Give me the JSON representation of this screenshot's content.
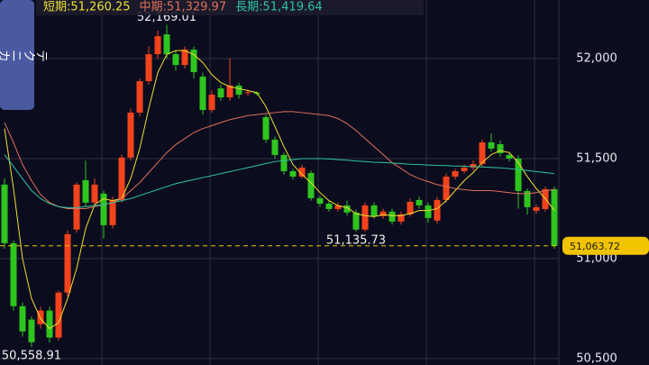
{
  "chart_data": {
    "type": "candlestick",
    "button": "テクニカル",
    "up_color": "#f2431c",
    "down_color": "#2ec51e",
    "grid_color": "#2e2e40",
    "ylim": [
      50468,
      52293
    ],
    "yticks": [
      {
        "value": 52000,
        "label": "52,000"
      },
      {
        "value": 51500,
        "label": "51,500"
      },
      {
        "value": 51000,
        "label": "51,000"
      },
      {
        "value": 50500,
        "label": "50,500"
      }
    ],
    "candles": {
      "open": [
        51370,
        51077,
        50762,
        50695,
        50672,
        50740,
        50605,
        50830,
        51145,
        51392,
        51280,
        51325,
        51167,
        51293,
        51505,
        51730,
        51887,
        52022,
        52121,
        52022,
        51968,
        52045,
        51910,
        51743,
        51851,
        51806,
        51865,
        51829,
        51829,
        51707,
        51595,
        51518,
        51437,
        51410,
        51428,
        51302,
        51275,
        51248,
        51266,
        51230,
        51145,
        51266,
        51212,
        51235,
        51185,
        51221,
        51293,
        51266,
        51190,
        51293,
        51410,
        51437,
        51455,
        51473,
        51581,
        51572,
        51518,
        51500,
        51338,
        51239,
        51248,
        51347
      ],
      "high": [
        51400,
        51090,
        50780,
        50710,
        50760,
        50760,
        50840,
        51140,
        51380,
        51490,
        51400,
        51340,
        51310,
        51520,
        51750,
        51900,
        52060,
        52140,
        52169.01,
        52040,
        52060,
        52060,
        51930,
        51840,
        51870,
        52000,
        51880,
        51845,
        51835,
        51720,
        51610,
        51530,
        51450,
        51470,
        51440,
        51315,
        51290,
        51280,
        51290,
        51245,
        51280,
        51280,
        51250,
        51250,
        51235,
        51300,
        51310,
        51280,
        51310,
        51425,
        51450,
        51470,
        51490,
        51595,
        51626,
        51590,
        51530,
        51515,
        51350,
        51270,
        51360,
        51360
      ],
      "low": [
        51050,
        50740,
        50610,
        50558.91,
        50650,
        50580,
        50590,
        50810,
        51130,
        51260,
        51260,
        51100,
        51150,
        51280,
        51490,
        51710,
        51870,
        52000,
        52000,
        51940,
        51950,
        51900,
        51720,
        51730,
        51790,
        51790,
        51800,
        51815,
        51815,
        51580,
        51500,
        51420,
        51395,
        51400,
        51290,
        51260,
        51235,
        51235,
        51215,
        51135.73,
        51135,
        51200,
        51200,
        51170,
        51170,
        51210,
        51250,
        51180,
        51175,
        51280,
        51395,
        51425,
        51440,
        51460,
        51535,
        51510,
        51485,
        51250,
        51220,
        51225,
        51235,
        51050
      ],
      "close": [
        51077,
        50762,
        50636,
        50582,
        50740,
        50605,
        50830,
        51122,
        51370,
        51280,
        51370,
        51167,
        51293,
        51505,
        51730,
        51887,
        52022,
        52112,
        52022,
        51968,
        52045,
        51932,
        51743,
        51820,
        51806,
        51865,
        51820,
        51832,
        51824,
        51595,
        51518,
        51437,
        51410,
        51455,
        51302,
        51275,
        51248,
        51266,
        51230,
        51145,
        51266,
        51212,
        51235,
        51185,
        51221,
        51284,
        51266,
        51203,
        51293,
        51410,
        51437,
        51455,
        51473,
        51581,
        51550,
        51527,
        51500,
        51338,
        51257,
        51257,
        51347,
        51063.72
      ]
    },
    "series": [
      {
        "name": "短期",
        "legend_text": "短期:51,260.25",
        "color": "#f0e030",
        "values": [
          51650,
          51350,
          51000,
          50800,
          50700,
          50650,
          50680,
          50800,
          50950,
          51150,
          51270,
          51300,
          51290,
          51300,
          51400,
          51550,
          51750,
          51930,
          52020,
          52040,
          52040,
          52020,
          51980,
          51920,
          51880,
          51860,
          51850,
          51840,
          51830,
          51760,
          51660,
          51560,
          51470,
          51420,
          51380,
          51330,
          51290,
          51265,
          51255,
          51225,
          51215,
          51210,
          51220,
          51215,
          51215,
          51225,
          51240,
          51240,
          51250,
          51290,
          51340,
          51390,
          51430,
          51480,
          51520,
          51540,
          51530,
          51480,
          51410,
          51350,
          51300,
          51240
        ]
      },
      {
        "name": "中期",
        "legend_text": "中期:51,329.97",
        "color": "#e0705a",
        "values": [
          51680,
          51580,
          51470,
          51390,
          51320,
          51280,
          51260,
          51250,
          51250,
          51250,
          51260,
          51270,
          51280,
          51300,
          51340,
          51380,
          51430,
          51480,
          51530,
          51570,
          51600,
          51630,
          51650,
          51665,
          51680,
          51695,
          51705,
          51715,
          51720,
          51725,
          51730,
          51735,
          51735,
          51730,
          51725,
          51720,
          51715,
          51700,
          51675,
          51640,
          51600,
          51560,
          51520,
          51480,
          51450,
          51420,
          51400,
          51385,
          51370,
          51360,
          51350,
          51345,
          51340,
          51340,
          51340,
          51335,
          51330,
          51325,
          51325,
          51330,
          51340,
          51345
        ]
      },
      {
        "name": "長期",
        "legend_text": "長期:51,419.64",
        "color": "#2ec4a0",
        "values": [
          51520,
          51460,
          51400,
          51340,
          51300,
          51275,
          51260,
          51255,
          51255,
          51260,
          51265,
          51270,
          51280,
          51290,
          51300,
          51315,
          51330,
          51345,
          51360,
          51375,
          51385,
          51395,
          51405,
          51415,
          51425,
          51435,
          51445,
          51455,
          51465,
          51475,
          51485,
          51490,
          51495,
          51500,
          51500,
          51500,
          51498,
          51495,
          51492,
          51488,
          51485,
          51482,
          51480,
          51478,
          51475,
          51472,
          51470,
          51468,
          51466,
          51465,
          51463,
          51462,
          51460,
          51458,
          51456,
          51454,
          51450,
          51445,
          51440,
          51435,
          51430,
          51425
        ]
      }
    ],
    "annotations": [
      {
        "value": 52169.01,
        "label": "52,169.01"
      },
      {
        "value": 51135.73,
        "label": "51,135.73"
      },
      {
        "value": 50558.91,
        "label": "50,558.91"
      }
    ],
    "last_price": {
      "value": 51063.72,
      "label": "51,063.72",
      "color": "#f2c400"
    }
  }
}
